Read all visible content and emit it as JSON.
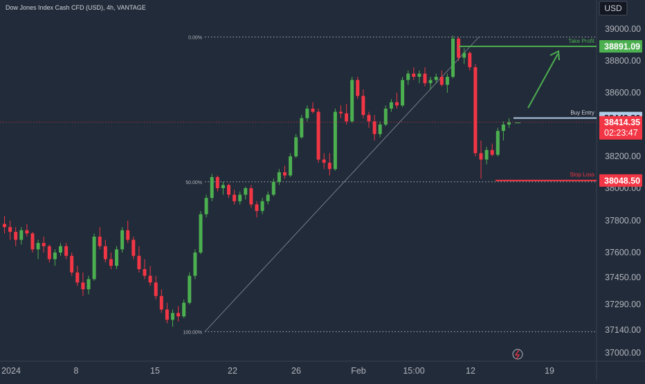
{
  "header": {
    "title": "Dow Jones Index Cash CFD (USD), 4h, VANTAGE"
  },
  "price_axis": {
    "currency": "USD",
    "ticks": [
      "39000.00",
      "38800.00",
      "38600.00",
      "38200.00",
      "38000.00",
      "37800.00",
      "37600.00",
      "37450.00",
      "37290.00",
      "37140.00",
      "37000.00"
    ],
    "tick_values": [
      39000,
      38800,
      38600,
      38200,
      38000,
      37800,
      37600,
      37450,
      37290,
      37140,
      37000
    ],
    "scale_anchors": [
      [
        39000,
        42
      ],
      [
        38800,
        88
      ],
      [
        38600,
        134
      ],
      [
        38200,
        226
      ],
      [
        38000,
        272
      ],
      [
        37800,
        319
      ],
      [
        37600,
        365
      ],
      [
        37450,
        401
      ],
      [
        37290,
        440
      ],
      [
        37140,
        477
      ],
      [
        37000,
        510
      ]
    ]
  },
  "time_axis": {
    "labels": [
      "2024",
      "8",
      "15",
      "22",
      "26",
      "Feb",
      "15:00",
      "12",
      "19"
    ]
  },
  "fib_levels": [
    {
      "label": "0.00%",
      "price": 38950
    },
    {
      "label": "50.00%",
      "price": 38040
    },
    {
      "label": "100.00%",
      "price": 37130
    }
  ],
  "trade_levels": {
    "take_profit": {
      "label": "Take Profit",
      "price": 38891.09,
      "price_label": "38891.09",
      "color": "#4caf50"
    },
    "buy_entry": {
      "label": "Buy Entry",
      "price": 38440.86,
      "price_label": "38440.86",
      "color": "#b2cde8"
    },
    "stop_loss": {
      "label": "Stop Loss",
      "price": 38048.5,
      "price_label": "38048.50",
      "color": "#f23645"
    }
  },
  "last_price": {
    "value": "38414.35",
    "countdown": "02:23:47",
    "color": "#f23645"
  },
  "colors": {
    "background": "#222b39",
    "up": "#4caf50",
    "down": "#f23645",
    "text": "#b2b5be"
  },
  "chart_data": {
    "type": "candlestick",
    "title": "Dow Jones Index Cash CFD (USD), 4h, VANTAGE",
    "xlabel": "",
    "ylabel": "",
    "ylim": [
      37000,
      39000
    ],
    "grid": false,
    "series": [
      {
        "values": [
          [
            37780,
            37830,
            37720,
            37760
          ],
          [
            37760,
            37800,
            37680,
            37730
          ],
          [
            37730,
            37760,
            37640,
            37680
          ],
          [
            37680,
            37760,
            37650,
            37740
          ],
          [
            37740,
            37780,
            37700,
            37720
          ],
          [
            37720,
            37730,
            37600,
            37620
          ],
          [
            37620,
            37680,
            37560,
            37660
          ],
          [
            37660,
            37700,
            37600,
            37640
          ],
          [
            37640,
            37650,
            37540,
            37560
          ],
          [
            37560,
            37620,
            37520,
            37600
          ],
          [
            37600,
            37660,
            37580,
            37640
          ],
          [
            37640,
            37660,
            37560,
            37580
          ],
          [
            37580,
            37600,
            37460,
            37480
          ],
          [
            37480,
            37520,
            37400,
            37420
          ],
          [
            37420,
            37480,
            37340,
            37380
          ],
          [
            37380,
            37460,
            37350,
            37440
          ],
          [
            37440,
            37720,
            37430,
            37700
          ],
          [
            37700,
            37760,
            37620,
            37640
          ],
          [
            37640,
            37680,
            37540,
            37560
          ],
          [
            37560,
            37600,
            37500,
            37520
          ],
          [
            37520,
            37640,
            37500,
            37620
          ],
          [
            37620,
            37760,
            37600,
            37740
          ],
          [
            37740,
            37800,
            37660,
            37680
          ],
          [
            37680,
            37700,
            37560,
            37580
          ],
          [
            37580,
            37640,
            37480,
            37500
          ],
          [
            37500,
            37560,
            37440,
            37460
          ],
          [
            37460,
            37520,
            37400,
            37420
          ],
          [
            37420,
            37460,
            37320,
            37340
          ],
          [
            37340,
            37380,
            37240,
            37260
          ],
          [
            37260,
            37300,
            37180,
            37200
          ],
          [
            37200,
            37260,
            37160,
            37240
          ],
          [
            37240,
            37280,
            37190,
            37220
          ],
          [
            37220,
            37320,
            37210,
            37300
          ],
          [
            37300,
            37480,
            37290,
            37460
          ],
          [
            37460,
            37620,
            37440,
            37600
          ],
          [
            37600,
            37860,
            37590,
            37840
          ],
          [
            37840,
            37960,
            37820,
            37940
          ],
          [
            37940,
            38090,
            37920,
            38070
          ],
          [
            38070,
            38080,
            37980,
            38000
          ],
          [
            38000,
            38040,
            37960,
            38020
          ],
          [
            38020,
            38030,
            37940,
            37960
          ],
          [
            37960,
            37990,
            37900,
            37920
          ],
          [
            37920,
            37980,
            37900,
            37960
          ],
          [
            37960,
            38010,
            37930,
            38000
          ],
          [
            38000,
            38020,
            37880,
            37900
          ],
          [
            37900,
            37920,
            37820,
            37860
          ],
          [
            37860,
            37940,
            37840,
            37920
          ],
          [
            37920,
            37980,
            37900,
            37960
          ],
          [
            37960,
            38060,
            37950,
            38040
          ],
          [
            38040,
            38120,
            38020,
            38100
          ],
          [
            38100,
            38140,
            38060,
            38080
          ],
          [
            38080,
            38220,
            38070,
            38200
          ],
          [
            38200,
            38340,
            38190,
            38320
          ],
          [
            38320,
            38460,
            38310,
            38440
          ],
          [
            38440,
            38520,
            38420,
            38500
          ],
          [
            38500,
            38540,
            38470,
            38480
          ],
          [
            38480,
            38500,
            38160,
            38180
          ],
          [
            38180,
            38220,
            38120,
            38160
          ],
          [
            38160,
            38220,
            38080,
            38120
          ],
          [
            38120,
            38500,
            38110,
            38480
          ],
          [
            38480,
            38520,
            38440,
            38470
          ],
          [
            38470,
            38530,
            38400,
            38420
          ],
          [
            38420,
            38700,
            38410,
            38680
          ],
          [
            38680,
            38700,
            38560,
            38580
          ],
          [
            38580,
            38620,
            38440,
            38460
          ],
          [
            38460,
            38480,
            38380,
            38420
          ],
          [
            38420,
            38460,
            38300,
            38340
          ],
          [
            38340,
            38420,
            38320,
            38400
          ],
          [
            38400,
            38520,
            38390,
            38500
          ],
          [
            38500,
            38560,
            38480,
            38540
          ],
          [
            38540,
            38600,
            38500,
            38520
          ],
          [
            38520,
            38700,
            38510,
            38680
          ],
          [
            38680,
            38740,
            38650,
            38720
          ],
          [
            38720,
            38760,
            38680,
            38700
          ],
          [
            38700,
            38740,
            38660,
            38720
          ],
          [
            38720,
            38760,
            38640,
            38660
          ],
          [
            38660,
            38700,
            38620,
            38680
          ],
          [
            38680,
            38720,
            38660,
            38700
          ],
          [
            38700,
            38740,
            38640,
            38650
          ],
          [
            38650,
            38720,
            38600,
            38700
          ],
          [
            38700,
            38960,
            38690,
            38940
          ],
          [
            38940,
            38950,
            38800,
            38820
          ],
          [
            38820,
            38880,
            38780,
            38850
          ],
          [
            38850,
            38860,
            38740,
            38760
          ],
          [
            38760,
            38780,
            38200,
            38220
          ],
          [
            38220,
            38300,
            38060,
            38180
          ],
          [
            38180,
            38260,
            38150,
            38240
          ],
          [
            38240,
            38280,
            38200,
            38210
          ],
          [
            38210,
            38380,
            38200,
            38360
          ],
          [
            38360,
            38420,
            38300,
            38400
          ],
          [
            38400,
            38440,
            38380,
            38414.35
          ]
        ]
      }
    ]
  }
}
